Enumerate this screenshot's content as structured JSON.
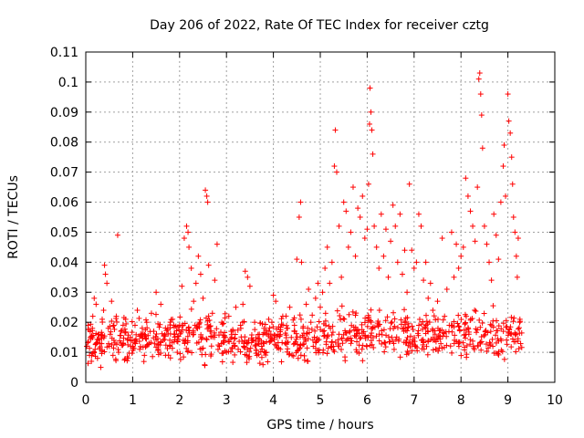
{
  "chart_data": {
    "type": "scatter",
    "title": "Day 206 of 2022, Rate Of TEC Index for receiver cztg",
    "xlabel": "GPS time / hours",
    "ylabel": "ROTI / TECUs",
    "xlim": [
      0,
      10
    ],
    "ylim": [
      0,
      0.11
    ],
    "x_ticks": [
      0,
      1,
      2,
      3,
      4,
      5,
      6,
      7,
      8,
      9,
      10
    ],
    "x_tick_labels": [
      "0",
      "1",
      "2",
      "3",
      "4",
      "5",
      "6",
      "7",
      "8",
      "9",
      "10"
    ],
    "y_ticks": [
      0,
      0.01,
      0.02,
      0.03,
      0.04,
      0.05,
      0.06,
      0.07,
      0.08,
      0.09,
      0.1,
      0.11
    ],
    "y_tick_labels": [
      "0",
      "0.01",
      "0.02",
      "0.03",
      "0.04",
      "0.05",
      "0.06",
      "0.07",
      "0.08",
      "0.09",
      "0.1",
      "0.11"
    ],
    "grid": true,
    "legend": "none",
    "marker": "plus",
    "color": "#ff0000",
    "series": [
      {
        "name": "ROTI",
        "points": [
          [
            0.02,
            0.012
          ],
          [
            0.05,
            0.019
          ],
          [
            0.08,
            0.009
          ],
          [
            0.1,
            0.015
          ],
          [
            0.12,
            0.007
          ],
          [
            0.15,
            0.022
          ],
          [
            0.18,
            0.028
          ],
          [
            0.2,
            0.011
          ],
          [
            0.22,
            0.026
          ],
          [
            0.25,
            0.008
          ],
          [
            0.28,
            0.016
          ],
          [
            0.3,
            0.013
          ],
          [
            0.32,
            0.005
          ],
          [
            0.35,
            0.021
          ],
          [
            0.38,
            0.024
          ],
          [
            0.4,
            0.039
          ],
          [
            0.42,
            0.036
          ],
          [
            0.45,
            0.033
          ],
          [
            0.48,
            0.018
          ],
          [
            0.5,
            0.012
          ],
          [
            0.55,
            0.027
          ],
          [
            0.58,
            0.009
          ],
          [
            0.6,
            0.014
          ],
          [
            0.65,
            0.022
          ],
          [
            0.68,
            0.049
          ],
          [
            0.7,
            0.01
          ],
          [
            0.75,
            0.017
          ],
          [
            0.8,
            0.013
          ],
          [
            0.85,
            0.021
          ],
          [
            0.9,
            0.008
          ],
          [
            0.95,
            0.015
          ],
          [
            1.0,
            0.012
          ],
          [
            1.05,
            0.019
          ],
          [
            1.1,
            0.024
          ],
          [
            1.15,
            0.011
          ],
          [
            1.2,
            0.016
          ],
          [
            1.25,
            0.009
          ],
          [
            1.3,
            0.02
          ],
          [
            1.35,
            0.013
          ],
          [
            1.4,
            0.023
          ],
          [
            1.45,
            0.017
          ],
          [
            1.5,
            0.03
          ],
          [
            1.55,
            0.011
          ],
          [
            1.6,
            0.026
          ],
          [
            1.65,
            0.014
          ],
          [
            1.7,
            0.009
          ],
          [
            1.75,
            0.018
          ],
          [
            1.8,
            0.012
          ],
          [
            1.85,
            0.021
          ],
          [
            1.9,
            0.016
          ],
          [
            1.95,
            0.01
          ],
          [
            2.0,
            0.019
          ],
          [
            2.05,
            0.032
          ],
          [
            2.1,
            0.048
          ],
          [
            2.15,
            0.052
          ],
          [
            2.18,
            0.05
          ],
          [
            2.2,
            0.045
          ],
          [
            2.25,
            0.038
          ],
          [
            2.3,
            0.027
          ],
          [
            2.35,
            0.033
          ],
          [
            2.4,
            0.042
          ],
          [
            2.45,
            0.036
          ],
          [
            2.5,
            0.028
          ],
          [
            2.55,
            0.064
          ],
          [
            2.58,
            0.062
          ],
          [
            2.6,
            0.06
          ],
          [
            2.62,
            0.039
          ],
          [
            2.65,
            0.017
          ],
          [
            2.7,
            0.023
          ],
          [
            2.75,
            0.034
          ],
          [
            2.8,
            0.046
          ],
          [
            2.85,
            0.012
          ],
          [
            2.9,
            0.02
          ],
          [
            2.95,
            0.015
          ],
          [
            3.0,
            0.01
          ],
          [
            3.05,
            0.022
          ],
          [
            3.1,
            0.017
          ],
          [
            3.15,
            0.013
          ],
          [
            3.2,
            0.025
          ],
          [
            3.25,
            0.011
          ],
          [
            3.3,
            0.019
          ],
          [
            3.35,
            0.026
          ],
          [
            3.4,
            0.037
          ],
          [
            3.45,
            0.035
          ],
          [
            3.5,
            0.032
          ],
          [
            3.55,
            0.014
          ],
          [
            3.6,
            0.02
          ],
          [
            3.65,
            0.009
          ],
          [
            3.7,
            0.016
          ],
          [
            3.75,
            0.012
          ],
          [
            3.8,
            0.018
          ],
          [
            3.85,
            0.01
          ],
          [
            3.9,
            0.021
          ],
          [
            3.95,
            0.014
          ],
          [
            4.0,
            0.029
          ],
          [
            4.05,
            0.027
          ],
          [
            4.1,
            0.016
          ],
          [
            4.15,
            0.011
          ],
          [
            4.2,
            0.022
          ],
          [
            4.25,
            0.013
          ],
          [
            4.3,
            0.018
          ],
          [
            4.35,
            0.025
          ],
          [
            4.4,
            0.009
          ],
          [
            4.45,
            0.019
          ],
          [
            4.5,
            0.041
          ],
          [
            4.55,
            0.055
          ],
          [
            4.58,
            0.06
          ],
          [
            4.6,
            0.04
          ],
          [
            4.65,
            0.015
          ],
          [
            4.7,
            0.026
          ],
          [
            4.75,
            0.031
          ],
          [
            4.8,
            0.02
          ],
          [
            4.85,
            0.012
          ],
          [
            4.9,
            0.028
          ],
          [
            4.95,
            0.033
          ],
          [
            5.0,
            0.025
          ],
          [
            5.05,
            0.03
          ],
          [
            5.1,
            0.038
          ],
          [
            5.15,
            0.045
          ],
          [
            5.2,
            0.033
          ],
          [
            5.25,
            0.04
          ],
          [
            5.3,
            0.072
          ],
          [
            5.32,
            0.084
          ],
          [
            5.35,
            0.07
          ],
          [
            5.4,
            0.052
          ],
          [
            5.45,
            0.035
          ],
          [
            5.5,
            0.06
          ],
          [
            5.55,
            0.057
          ],
          [
            5.6,
            0.045
          ],
          [
            5.65,
            0.05
          ],
          [
            5.7,
            0.065
          ],
          [
            5.75,
            0.042
          ],
          [
            5.8,
            0.058
          ],
          [
            5.85,
            0.055
          ],
          [
            5.9,
            0.062
          ],
          [
            5.95,
            0.048
          ],
          [
            6.0,
            0.051
          ],
          [
            6.03,
            0.066
          ],
          [
            6.05,
            0.086
          ],
          [
            6.06,
            0.098
          ],
          [
            6.08,
            0.09
          ],
          [
            6.1,
            0.084
          ],
          [
            6.12,
            0.076
          ],
          [
            6.15,
            0.052
          ],
          [
            6.2,
            0.045
          ],
          [
            6.25,
            0.038
          ],
          [
            6.3,
            0.056
          ],
          [
            6.35,
            0.042
          ],
          [
            6.4,
            0.051
          ],
          [
            6.45,
            0.035
          ],
          [
            6.5,
            0.047
          ],
          [
            6.55,
            0.059
          ],
          [
            6.6,
            0.052
          ],
          [
            6.65,
            0.04
          ],
          [
            6.7,
            0.056
          ],
          [
            6.75,
            0.036
          ],
          [
            6.8,
            0.044
          ],
          [
            6.85,
            0.03
          ],
          [
            6.9,
            0.066
          ],
          [
            6.95,
            0.044
          ],
          [
            7.0,
            0.038
          ],
          [
            7.05,
            0.04
          ],
          [
            7.1,
            0.056
          ],
          [
            7.15,
            0.052
          ],
          [
            7.2,
            0.034
          ],
          [
            7.25,
            0.04
          ],
          [
            7.3,
            0.028
          ],
          [
            7.35,
            0.033
          ],
          [
            7.4,
            0.024
          ],
          [
            7.5,
            0.027
          ],
          [
            7.6,
            0.048
          ],
          [
            7.65,
            0.022
          ],
          [
            7.7,
            0.031
          ],
          [
            7.75,
            0.019
          ],
          [
            7.8,
            0.05
          ],
          [
            7.85,
            0.035
          ],
          [
            7.9,
            0.046
          ],
          [
            7.95,
            0.038
          ],
          [
            8.0,
            0.042
          ],
          [
            8.05,
            0.045
          ],
          [
            8.1,
            0.068
          ],
          [
            8.15,
            0.062
          ],
          [
            8.2,
            0.057
          ],
          [
            8.25,
            0.052
          ],
          [
            8.3,
            0.047
          ],
          [
            8.35,
            0.065
          ],
          [
            8.38,
            0.101
          ],
          [
            8.4,
            0.103
          ],
          [
            8.42,
            0.096
          ],
          [
            8.44,
            0.089
          ],
          [
            8.46,
            0.078
          ],
          [
            8.5,
            0.052
          ],
          [
            8.55,
            0.046
          ],
          [
            8.6,
            0.04
          ],
          [
            8.65,
            0.034
          ],
          [
            8.7,
            0.056
          ],
          [
            8.75,
            0.049
          ],
          [
            8.8,
            0.041
          ],
          [
            8.85,
            0.06
          ],
          [
            8.9,
            0.072
          ],
          [
            8.92,
            0.079
          ],
          [
            8.95,
            0.062
          ],
          [
            9.0,
            0.096
          ],
          [
            9.02,
            0.087
          ],
          [
            9.05,
            0.083
          ],
          [
            9.08,
            0.075
          ],
          [
            9.1,
            0.066
          ],
          [
            9.12,
            0.055
          ],
          [
            9.15,
            0.05
          ],
          [
            9.18,
            0.042
          ],
          [
            9.2,
            0.035
          ],
          [
            9.22,
            0.048
          ],
          [
            9.25,
            0.02
          ]
        ],
        "band": [
          {
            "from": 0.0,
            "to": 0.5,
            "low": 0.004,
            "high": 0.02
          },
          {
            "from": 0.5,
            "to": 1.0,
            "low": 0.004,
            "high": 0.022
          },
          {
            "from": 1.0,
            "to": 2.0,
            "low": 0.005,
            "high": 0.022
          },
          {
            "from": 2.0,
            "to": 3.0,
            "low": 0.004,
            "high": 0.024
          },
          {
            "from": 3.0,
            "to": 4.0,
            "low": 0.004,
            "high": 0.021
          },
          {
            "from": 4.0,
            "to": 5.0,
            "low": 0.004,
            "high": 0.022
          },
          {
            "from": 5.0,
            "to": 6.0,
            "low": 0.004,
            "high": 0.024
          },
          {
            "from": 6.0,
            "to": 7.0,
            "low": 0.004,
            "high": 0.024
          },
          {
            "from": 7.0,
            "to": 8.0,
            "low": 0.005,
            "high": 0.023
          },
          {
            "from": 8.0,
            "to": 9.3,
            "low": 0.004,
            "high": 0.024
          }
        ],
        "band_count": 900
      }
    ]
  }
}
